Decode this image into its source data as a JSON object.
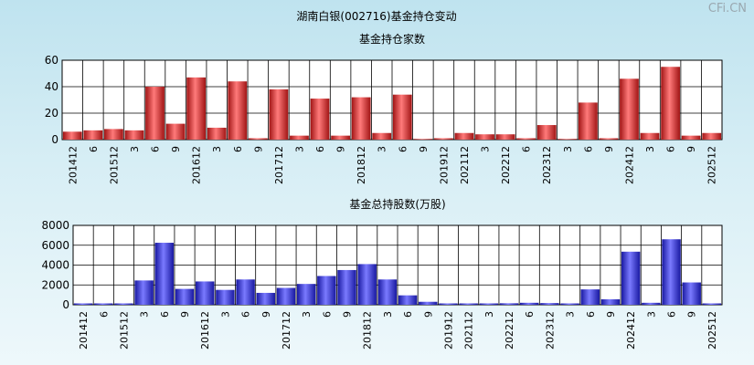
{
  "page_title": "湖南白银(002716)基金持仓变动",
  "watermark": "CFi.CN",
  "chart_data": [
    {
      "type": "bar",
      "title": "基金持仓家数",
      "ylim": [
        0,
        60
      ],
      "yticks": [
        0,
        20,
        40,
        60
      ],
      "grid": true,
      "bar_color": "#e03030",
      "categories": [
        "201412",
        "6",
        "201512",
        "3",
        "6",
        "9",
        "201612",
        "3",
        "6",
        "9",
        "201712",
        "3",
        "6",
        "9",
        "201812",
        "3",
        "6",
        "9",
        "201912",
        "202112",
        "3",
        "202212",
        "6",
        "202312",
        "3",
        "6",
        "9",
        "202412",
        "3",
        "6",
        "9",
        "202512"
      ],
      "values": [
        6,
        7,
        8,
        7,
        40,
        12,
        47,
        9,
        44,
        1,
        38,
        3,
        31,
        3,
        32,
        5,
        34,
        0,
        1,
        5,
        4,
        4,
        1,
        11,
        0,
        28,
        1,
        46,
        5,
        55,
        3,
        5
      ]
    },
    {
      "type": "bar",
      "title": "基金总持股数(万股)",
      "ylim": [
        0,
        8000
      ],
      "yticks": [
        0,
        2000,
        4000,
        6000,
        8000
      ],
      "grid": true,
      "bar_color": "#2a2ad8",
      "categories": [
        "201412",
        "6",
        "201512",
        "3",
        "6",
        "9",
        "201612",
        "3",
        "6",
        "9",
        "201712",
        "3",
        "6",
        "9",
        "201812",
        "3",
        "6",
        "9",
        "201912",
        "202112",
        "3",
        "202212",
        "6",
        "202312",
        "3",
        "6",
        "9",
        "202412",
        "3",
        "6",
        "9",
        "202512"
      ],
      "values": [
        80,
        40,
        60,
        2450,
        6250,
        1600,
        2350,
        1500,
        2550,
        1200,
        1700,
        2100,
        2900,
        3500,
        4100,
        2550,
        950,
        300,
        20,
        80,
        20,
        150,
        200,
        170,
        10,
        1550,
        550,
        5350,
        200,
        6600,
        2250,
        60
      ]
    }
  ]
}
